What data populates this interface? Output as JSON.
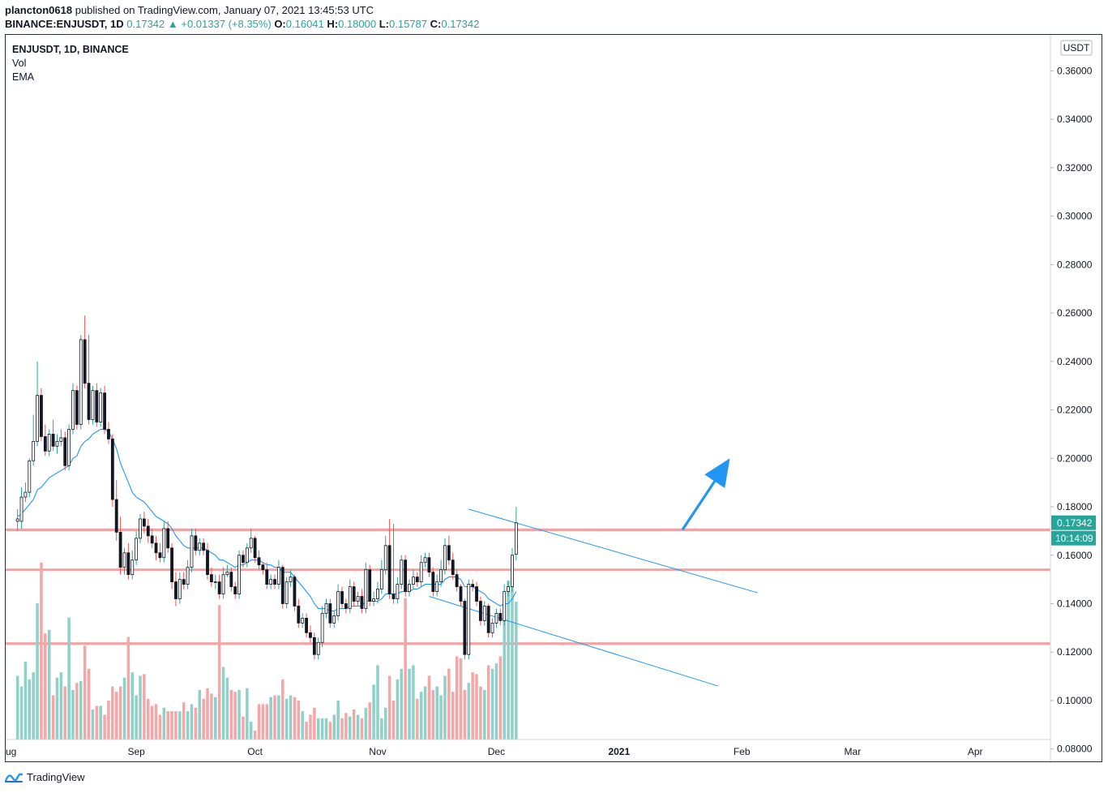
{
  "header": {
    "user": "plancton0618",
    "published": "published on TradingView.com, January 07, 2021 13:45:53 UTC",
    "symbol": "BINANCE:ENJUSDT, 1D",
    "last": "0.17342",
    "change": "▲ +0.01337 (+8.35%)",
    "o_label": "O:",
    "o_value": "0.16041",
    "h_label": "H:",
    "h_value": "0.18000",
    "l_label": "L:",
    "l_value": "0.15787",
    "c_label": "C:",
    "c_value": "0.17342"
  },
  "legend": {
    "title": "ENJUSDT, 1D, BINANCE",
    "vol": "Vol",
    "ema": "EMA"
  },
  "footer": {
    "brand": "TradingView",
    "logo_icon": "tradingview-logo-icon"
  },
  "colors": {
    "up": "#26a69a",
    "down": "#ef5350",
    "up_vol": "#8fd0c9",
    "down_vol": "#f4a7a6",
    "ema": "#2196f3",
    "level": "#f4a3a3",
    "arrow": "#2196f3"
  },
  "chart_data": {
    "type": "candlestick",
    "currency": "USDT",
    "ylim": [
      0.072,
      0.37
    ],
    "y_ticks": [
      "0.36000",
      "0.34000",
      "0.32000",
      "0.30000",
      "0.28000",
      "0.26000",
      "0.24000",
      "0.22000",
      "0.20000",
      "0.18000",
      "0.16000",
      "0.14000",
      "0.12000",
      "0.10000",
      "0.08000"
    ],
    "x_ticks": [
      "ug",
      "Sep",
      "Oct",
      "Nov",
      "Dec",
      "2021",
      "Feb",
      "Mar",
      "Apr"
    ],
    "x_tick_days": [
      -0.5,
      31,
      61,
      92,
      122,
      153,
      184,
      212,
      243
    ],
    "x_range_days": [
      -2,
      262
    ],
    "last_price": "0.17342",
    "countdown": "10:14:09",
    "horizontal_levels": [
      0.1705,
      0.154,
      0.1235
    ],
    "channel": {
      "upper": [
        [
          114,
          0.179
        ],
        [
          187,
          0.1445
        ]
      ],
      "lower": [
        [
          104,
          0.143
        ],
        [
          177,
          0.106
        ]
      ]
    },
    "arrow": {
      "from": [
        168,
        0.1705
      ],
      "to": [
        180,
        0.2
      ]
    },
    "close": [
      0.175,
      0.184,
      0.186,
      0.199,
      0.207,
      0.226,
      0.209,
      0.203,
      0.21,
      0.205,
      0.207,
      0.2085,
      0.197,
      0.212,
      0.228,
      0.214,
      0.249,
      0.231,
      0.216,
      0.228,
      0.215,
      0.227,
      0.212,
      0.208,
      0.183,
      0.1695,
      0.155,
      0.161,
      0.152,
      0.158,
      0.167,
      0.175,
      0.172,
      0.168,
      0.165,
      0.161,
      0.159,
      0.171,
      0.163,
      0.149,
      0.142,
      0.15,
      0.148,
      0.155,
      0.168,
      0.162,
      0.165,
      0.162,
      0.152,
      0.149,
      0.149,
      0.144,
      0.152,
      0.153,
      0.147,
      0.144,
      0.16,
      0.157,
      0.163,
      0.167,
      0.159,
      0.156,
      0.154,
      0.148,
      0.15,
      0.148,
      0.155,
      0.14,
      0.149,
      0.151,
      0.139,
      0.132,
      0.134,
      0.128,
      0.126,
      0.119,
      0.124,
      0.136,
      0.14,
      0.132,
      0.135,
      0.145,
      0.14,
      0.138,
      0.147,
      0.141,
      0.143,
      0.138,
      0.154,
      0.141,
      0.142,
      0.146,
      0.154,
      0.164,
      0.144,
      0.142,
      0.148,
      0.158,
      0.145,
      0.148,
      0.151,
      0.149,
      0.157,
      0.159,
      0.153,
      0.145,
      0.149,
      0.154,
      0.164,
      0.158,
      0.152,
      0.147,
      0.141,
      0.119,
      0.148,
      0.147,
      0.141,
      0.133,
      0.139,
      0.128,
      0.132,
      0.136,
      0.133,
      0.145,
      0.147,
      0.16,
      0.1734
    ],
    "open": [
      0.174,
      0.174,
      0.184,
      0.186,
      0.199,
      0.207,
      0.226,
      0.209,
      0.203,
      0.21,
      0.205,
      0.207,
      0.2085,
      0.197,
      0.212,
      0.228,
      0.214,
      0.249,
      0.231,
      0.216,
      0.228,
      0.215,
      0.227,
      0.212,
      0.208,
      0.183,
      0.1695,
      0.155,
      0.161,
      0.152,
      0.158,
      0.167,
      0.175,
      0.172,
      0.168,
      0.165,
      0.161,
      0.159,
      0.171,
      0.163,
      0.149,
      0.142,
      0.15,
      0.148,
      0.155,
      0.168,
      0.162,
      0.165,
      0.162,
      0.152,
      0.149,
      0.149,
      0.144,
      0.152,
      0.153,
      0.147,
      0.144,
      0.16,
      0.157,
      0.163,
      0.167,
      0.159,
      0.156,
      0.154,
      0.148,
      0.15,
      0.148,
      0.155,
      0.14,
      0.149,
      0.151,
      0.139,
      0.132,
      0.134,
      0.128,
      0.126,
      0.119,
      0.124,
      0.136,
      0.14,
      0.132,
      0.135,
      0.145,
      0.14,
      0.138,
      0.147,
      0.141,
      0.143,
      0.138,
      0.154,
      0.141,
      0.142,
      0.146,
      0.154,
      0.164,
      0.144,
      0.142,
      0.148,
      0.158,
      0.145,
      0.148,
      0.151,
      0.149,
      0.157,
      0.159,
      0.153,
      0.145,
      0.149,
      0.154,
      0.164,
      0.158,
      0.152,
      0.147,
      0.141,
      0.119,
      0.148,
      0.147,
      0.141,
      0.133,
      0.139,
      0.128,
      0.132,
      0.136,
      0.133,
      0.145,
      0.147,
      0.1604
    ],
    "high": [
      0.179,
      0.188,
      0.19,
      0.2,
      0.218,
      0.24,
      0.229,
      0.214,
      0.212,
      0.216,
      0.21,
      0.212,
      0.211,
      0.214,
      0.231,
      0.23,
      0.251,
      0.259,
      0.251,
      0.23,
      0.231,
      0.229,
      0.23,
      0.215,
      0.21,
      0.191,
      0.176,
      0.163,
      0.165,
      0.162,
      0.17,
      0.177,
      0.178,
      0.175,
      0.171,
      0.168,
      0.165,
      0.174,
      0.174,
      0.165,
      0.153,
      0.153,
      0.153,
      0.158,
      0.171,
      0.171,
      0.167,
      0.167,
      0.165,
      0.155,
      0.152,
      0.152,
      0.155,
      0.156,
      0.155,
      0.149,
      0.162,
      0.162,
      0.165,
      0.171,
      0.168,
      0.162,
      0.157,
      0.157,
      0.152,
      0.152,
      0.158,
      0.156,
      0.151,
      0.154,
      0.152,
      0.142,
      0.136,
      0.136,
      0.131,
      0.128,
      0.126,
      0.139,
      0.142,
      0.142,
      0.137,
      0.148,
      0.147,
      0.142,
      0.15,
      0.149,
      0.145,
      0.146,
      0.157,
      0.156,
      0.145,
      0.149,
      0.158,
      0.168,
      0.175,
      0.173,
      0.151,
      0.16,
      0.16,
      0.15,
      0.154,
      0.153,
      0.16,
      0.161,
      0.161,
      0.155,
      0.152,
      0.158,
      0.167,
      0.168,
      0.161,
      0.154,
      0.148,
      0.142,
      0.15,
      0.15,
      0.149,
      0.143,
      0.141,
      0.14,
      0.134,
      0.138,
      0.138,
      0.148,
      0.149,
      0.163,
      0.18
    ],
    "low": [
      0.17,
      0.171,
      0.182,
      0.184,
      0.197,
      0.205,
      0.207,
      0.201,
      0.201,
      0.203,
      0.202,
      0.205,
      0.195,
      0.195,
      0.21,
      0.212,
      0.212,
      0.229,
      0.214,
      0.214,
      0.213,
      0.213,
      0.21,
      0.206,
      0.18,
      0.166,
      0.152,
      0.152,
      0.15,
      0.15,
      0.156,
      0.165,
      0.169,
      0.165,
      0.163,
      0.158,
      0.157,
      0.157,
      0.161,
      0.146,
      0.139,
      0.14,
      0.146,
      0.146,
      0.153,
      0.16,
      0.16,
      0.16,
      0.15,
      0.147,
      0.146,
      0.142,
      0.142,
      0.151,
      0.145,
      0.142,
      0.142,
      0.155,
      0.155,
      0.161,
      0.157,
      0.154,
      0.152,
      0.146,
      0.146,
      0.146,
      0.146,
      0.138,
      0.138,
      0.147,
      0.137,
      0.13,
      0.13,
      0.126,
      0.124,
      0.117,
      0.117,
      0.122,
      0.134,
      0.13,
      0.13,
      0.133,
      0.138,
      0.136,
      0.136,
      0.139,
      0.139,
      0.136,
      0.136,
      0.139,
      0.139,
      0.14,
      0.144,
      0.152,
      0.142,
      0.14,
      0.14,
      0.146,
      0.143,
      0.143,
      0.146,
      0.147,
      0.147,
      0.155,
      0.151,
      0.143,
      0.143,
      0.147,
      0.152,
      0.156,
      0.15,
      0.145,
      0.139,
      0.117,
      0.117,
      0.145,
      0.139,
      0.131,
      0.131,
      0.126,
      0.126,
      0.13,
      0.131,
      0.131,
      0.143,
      0.145,
      0.1579
    ],
    "volume": [
      0.36,
      0.3,
      0.44,
      0.34,
      0.38,
      0.77,
      1.0,
      0.6,
      0.62,
      0.25,
      0.35,
      0.38,
      0.3,
      0.69,
      0.28,
      0.32,
      0.33,
      0.53,
      0.4,
      0.17,
      0.19,
      0.19,
      0.14,
      0.22,
      0.3,
      0.27,
      0.3,
      0.35,
      0.58,
      0.38,
      0.25,
      0.36,
      0.37,
      0.23,
      0.19,
      0.2,
      0.14,
      0.18,
      0.16,
      0.16,
      0.16,
      0.16,
      0.21,
      0.16,
      0.2,
      0.18,
      0.28,
      0.23,
      0.29,
      0.26,
      0.24,
      0.76,
      0.41,
      0.35,
      0.28,
      0.27,
      0.28,
      0.13,
      0.29,
      0.1,
      0.05,
      0.2,
      0.2,
      0.2,
      0.24,
      0.25,
      0.25,
      0.34,
      0.23,
      0.25,
      0.24,
      0.22,
      0.16,
      0.1,
      0.14,
      0.18,
      0.12,
      0.12,
      0.12,
      0.1,
      0.14,
      0.22,
      0.12,
      0.15,
      0.13,
      0.17,
      0.14,
      0.12,
      0.18,
      0.21,
      0.31,
      0.42,
      0.12,
      0.18,
      0.36,
      0.22,
      0.34,
      0.4,
      0.8,
      0.4,
      0.42,
      0.23,
      0.27,
      0.3,
      0.36,
      0.28,
      0.3,
      0.25,
      0.36,
      0.4,
      0.27,
      0.47,
      0.46,
      0.28,
      0.32,
      0.38,
      0.37,
      0.3,
      0.28,
      0.42,
      0.4,
      0.43,
      0.47,
      0.7,
      0.9,
      1.0,
      0.78
    ],
    "ema": [
      0.176,
      0.177,
      0.179,
      0.181,
      0.183,
      0.187,
      0.188,
      0.19,
      0.192,
      0.193,
      0.194,
      0.195,
      0.196,
      0.197,
      0.2,
      0.201,
      0.205,
      0.207,
      0.208,
      0.21,
      0.211,
      0.212,
      0.212,
      0.211,
      0.208,
      0.204,
      0.198,
      0.194,
      0.19,
      0.186,
      0.184,
      0.183,
      0.182,
      0.18,
      0.178,
      0.176,
      0.175,
      0.174,
      0.173,
      0.171,
      0.168,
      0.166,
      0.164,
      0.163,
      0.163,
      0.163,
      0.163,
      0.163,
      0.162,
      0.161,
      0.16,
      0.158,
      0.158,
      0.157,
      0.156,
      0.155,
      0.156,
      0.156,
      0.157,
      0.158,
      0.158,
      0.158,
      0.157,
      0.156,
      0.156,
      0.155,
      0.155,
      0.153,
      0.153,
      0.153,
      0.151,
      0.149,
      0.147,
      0.145,
      0.143,
      0.14,
      0.138,
      0.138,
      0.138,
      0.137,
      0.137,
      0.138,
      0.138,
      0.138,
      0.139,
      0.139,
      0.139,
      0.139,
      0.141,
      0.141,
      0.141,
      0.141,
      0.142,
      0.144,
      0.144,
      0.144,
      0.144,
      0.145,
      0.145,
      0.145,
      0.146,
      0.146,
      0.147,
      0.148,
      0.148,
      0.148,
      0.148,
      0.148,
      0.15,
      0.151,
      0.151,
      0.151,
      0.15,
      0.147,
      0.147,
      0.147,
      0.146,
      0.145,
      0.144,
      0.142,
      0.141,
      0.14,
      0.139,
      0.14,
      0.14,
      0.142,
      0.145
    ]
  }
}
